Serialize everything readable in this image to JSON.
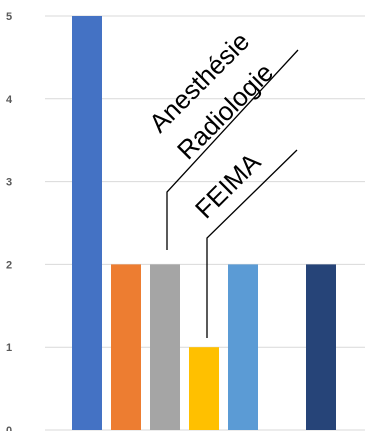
{
  "chart_data": {
    "type": "bar",
    "title": "",
    "xlabel": "",
    "ylabel": "",
    "ylim": [
      0,
      5
    ],
    "yticks": [
      0,
      1,
      2,
      3,
      4,
      5
    ],
    "grid": true,
    "legend": "none",
    "values": [
      5,
      2,
      2,
      1,
      2,
      2
    ],
    "colors": [
      "#4472C4",
      "#ED7D31",
      "#A5A5A5",
      "#FFC000",
      "#5B9BD5",
      "#264478"
    ],
    "annotations": [
      {
        "text": "Anesthésie",
        "bar_index": 2
      },
      {
        "text": "Radiologie",
        "bar_index": 2
      },
      {
        "text": "FEIMA",
        "bar_index": 3
      }
    ]
  }
}
